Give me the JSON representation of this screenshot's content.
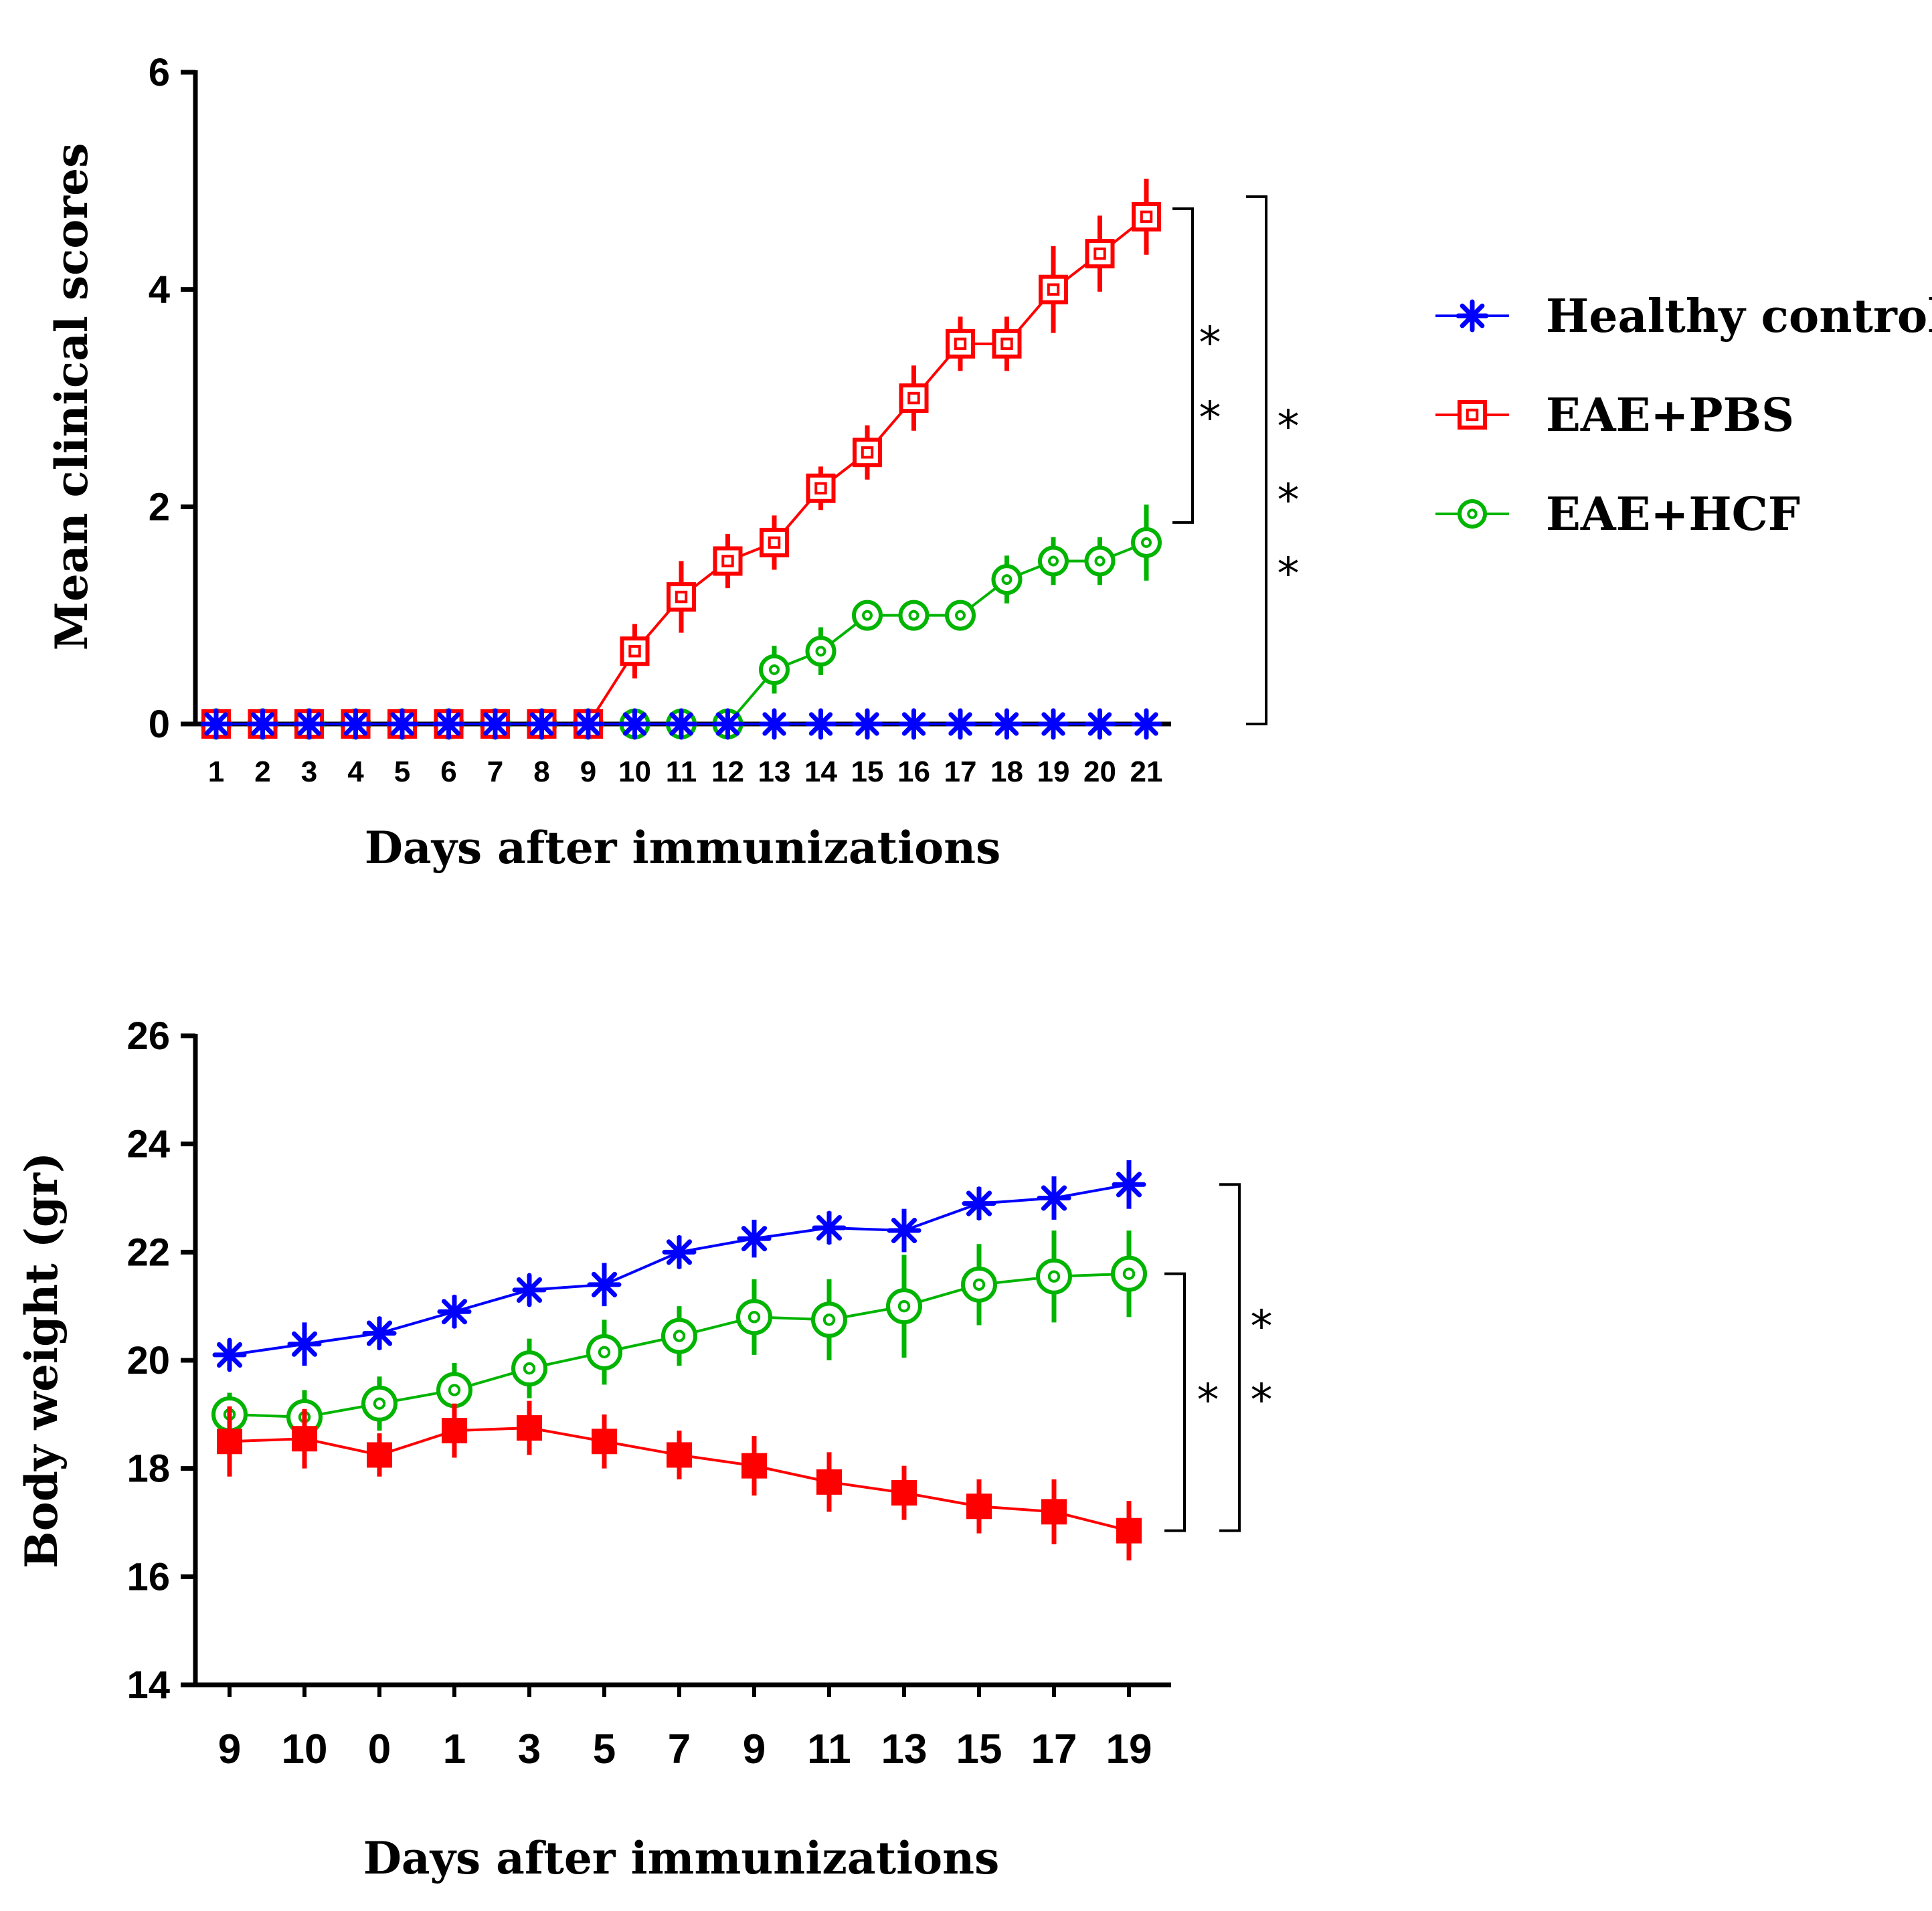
{
  "legend": [
    {
      "name": "Healthy control",
      "color": "#0000ff",
      "marker": "asterisk"
    },
    {
      "name": "EAE+PBS",
      "color": "#ff0000",
      "marker": "square"
    },
    {
      "name": "EAE+HCF",
      "color": "#00b400",
      "marker": "circle"
    }
  ],
  "chart_data": [
    {
      "type": "line",
      "title": "",
      "xlabel": "Days after immunizations",
      "ylabel": "Mean clinical scores",
      "ylim": [
        0,
        6
      ],
      "yticks": [
        "0",
        "2",
        "4",
        "6"
      ],
      "categories": [
        "1",
        "2",
        "3",
        "4",
        "5",
        "6",
        "7",
        "8",
        "9",
        "10",
        "11",
        "12",
        "13",
        "14",
        "15",
        "16",
        "17",
        "18",
        "19",
        "20",
        "21"
      ],
      "series": [
        {
          "name": "Healthy control",
          "color": "#0000ff",
          "marker": "asterisk",
          "values": [
            0,
            0,
            0,
            0,
            0,
            0,
            0,
            0,
            0,
            0,
            0,
            0,
            0,
            0,
            0,
            0,
            0,
            0,
            0,
            0,
            0
          ],
          "errors": [
            0,
            0,
            0,
            0,
            0,
            0,
            0,
            0,
            0,
            0,
            0,
            0,
            0,
            0,
            0,
            0,
            0,
            0,
            0,
            0,
            0
          ]
        },
        {
          "name": "EAE+PBS",
          "color": "#ff0000",
          "marker": "square-open",
          "values": [
            0,
            0,
            0,
            0,
            0,
            0,
            0,
            0,
            0,
            0.67,
            1.17,
            1.5,
            1.67,
            2.17,
            2.5,
            3.0,
            3.5,
            3.5,
            4.0,
            4.33,
            4.67
          ],
          "errors": [
            0,
            0,
            0,
            0,
            0,
            0,
            0,
            0,
            0,
            0.25,
            0.33,
            0.25,
            0.25,
            0.2,
            0.25,
            0.3,
            0.25,
            0.25,
            0.4,
            0.35,
            0.35
          ]
        },
        {
          "name": "EAE+HCF",
          "color": "#00b400",
          "marker": "circle-open",
          "values": [
            0,
            0,
            0,
            0,
            0,
            0,
            0,
            0,
            0,
            0,
            0,
            0,
            0.5,
            0.67,
            1.0,
            1.0,
            1.0,
            1.33,
            1.5,
            1.5,
            1.67
          ],
          "errors": [
            0,
            0,
            0,
            0,
            0,
            0,
            0,
            0,
            0,
            0,
            0,
            0,
            0.22,
            0.22,
            0,
            0,
            0,
            0.22,
            0.22,
            0.22,
            0.35
          ]
        }
      ],
      "significance": [
        {
          "between": "EAE+PBS vs EAE+HCF",
          "marks": [
            "*",
            "*"
          ]
        },
        {
          "between": "EAE+PBS vs Healthy control",
          "marks": [
            "*",
            "*",
            "*"
          ]
        }
      ]
    },
    {
      "type": "line",
      "title": "",
      "xlabel": "Days after immunizations",
      "ylabel": "Body weight (gr)",
      "ylim": [
        14,
        26
      ],
      "yticks": [
        "14",
        "16",
        "18",
        "20",
        "22",
        "24",
        "26"
      ],
      "categories": [
        "9",
        "10",
        "0",
        "1",
        "3",
        "5",
        "7",
        "9",
        "11",
        "13",
        "15",
        "17",
        "19"
      ],
      "series": [
        {
          "name": "Healthy control",
          "color": "#0000ff",
          "marker": "asterisk",
          "values": [
            20.1,
            20.3,
            20.5,
            20.9,
            21.3,
            21.4,
            22.0,
            22.25,
            22.45,
            22.4,
            22.9,
            23.0,
            23.25
          ],
          "errors": [
            0.25,
            0.4,
            0.3,
            0.3,
            0.25,
            0.4,
            0.3,
            0.35,
            0.3,
            0.4,
            0.3,
            0.4,
            0.45
          ]
        },
        {
          "name": "EAE+PBS",
          "color": "#ff0000",
          "marker": "square-filled",
          "values": [
            18.5,
            18.55,
            18.25,
            18.7,
            18.75,
            18.5,
            18.25,
            18.05,
            17.75,
            17.55,
            17.3,
            17.2,
            16.85
          ],
          "errors": [
            0.65,
            0.55,
            0.4,
            0.5,
            0.5,
            0.5,
            0.45,
            0.55,
            0.55,
            0.5,
            0.5,
            0.6,
            0.55
          ]
        },
        {
          "name": "EAE+HCF",
          "color": "#00b400",
          "marker": "circle-open",
          "values": [
            19.0,
            18.95,
            19.2,
            19.45,
            19.85,
            20.15,
            20.45,
            20.8,
            20.75,
            21.0,
            21.4,
            21.55,
            21.6
          ],
          "errors": [
            0.4,
            0.5,
            0.5,
            0.5,
            0.55,
            0.6,
            0.55,
            0.7,
            0.75,
            0.95,
            0.75,
            0.85,
            0.8
          ]
        }
      ],
      "significance": [
        {
          "between": "EAE+HCF vs EAE+PBS",
          "marks": [
            "*"
          ]
        },
        {
          "between": "Healthy control vs EAE+PBS",
          "marks": [
            "*",
            "*"
          ]
        }
      ]
    }
  ]
}
